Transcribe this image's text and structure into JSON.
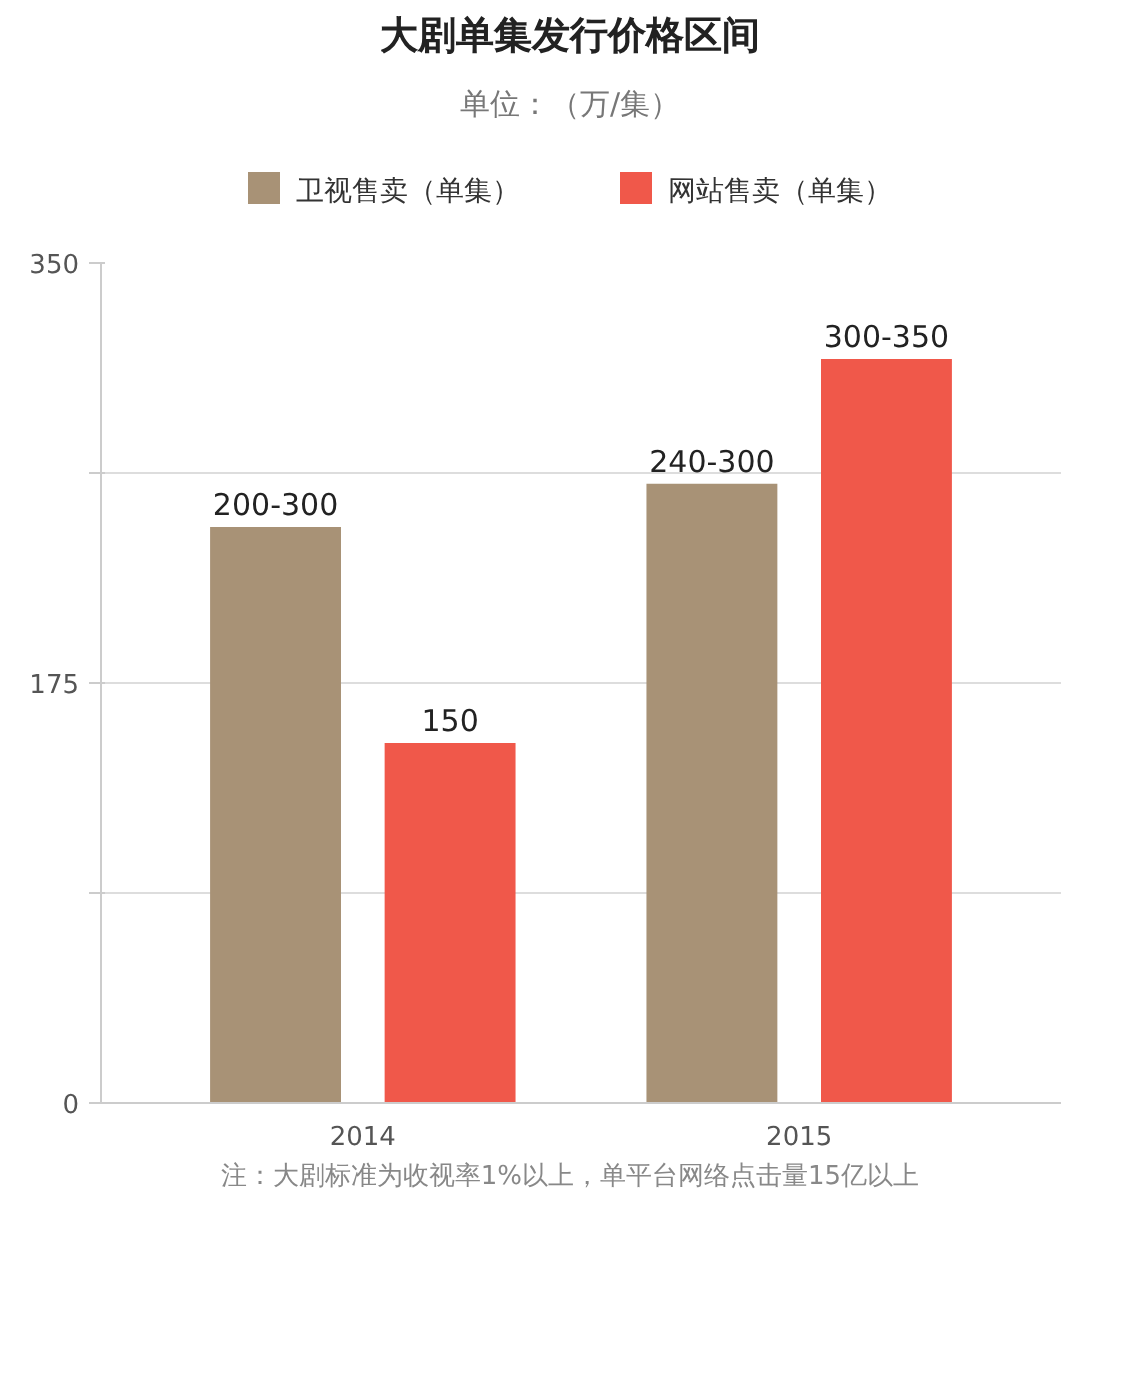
{
  "chart_data": {
    "type": "bar",
    "title": "大剧单集发行价格区间",
    "subtitle": "单位：（万/集）",
    "categories": [
      "2014",
      "2015"
    ],
    "series": [
      {
        "name": "卫视售卖（单集）",
        "color": "#a89276",
        "values": [
          240,
          258
        ],
        "value_labels": [
          "200-300",
          "240-300"
        ]
      },
      {
        "name": "网站售卖（单集）",
        "color": "#f0584a",
        "values": [
          150,
          310
        ],
        "value_labels": [
          "150",
          "300-350"
        ]
      }
    ],
    "ylim": [
      0,
      350
    ],
    "yticks": [
      0,
      {
        "value": 87.5,
        "label": null
      },
      175,
      {
        "value": 262.5,
        "label": null
      },
      350
    ],
    "grid": "y",
    "legend": "top",
    "annotations": [
      "注：大剧标准为收视率1%以上，单平台网络点击量15亿以上"
    ]
  }
}
